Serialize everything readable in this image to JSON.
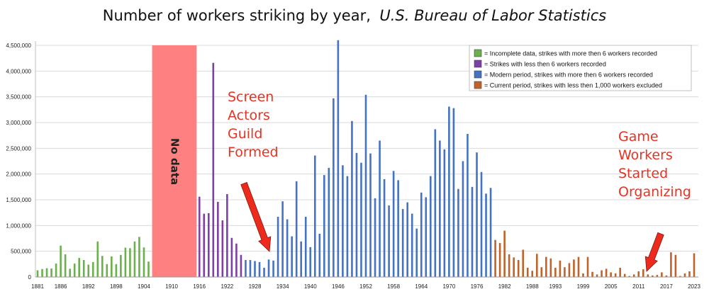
{
  "chart_data": {
    "type": "bar",
    "title": "Number of workers striking by year,",
    "subtitle": "U.S. Bureau of Labor Statistics",
    "xlabel": "",
    "ylabel": "",
    "ylim": [
      0,
      4500000
    ],
    "yticks": [
      0,
      500000,
      1000000,
      1500000,
      2000000,
      2500000,
      3000000,
      3500000,
      4000000,
      4500000
    ],
    "ytick_labels": [
      "0",
      "500,000",
      "1,000,000",
      "1,500,000",
      "2,000,000",
      "2,500,000",
      "3,000,000",
      "3,500,000",
      "4,000,000",
      "4,500,000"
    ],
    "xtick_labels": [
      "1881",
      "1886",
      "1892",
      "1898",
      "1904",
      "1910",
      "1916",
      "1922",
      "1928",
      "1934",
      "1940",
      "1946",
      "1952",
      "1958",
      "1964",
      "1970",
      "1976",
      "1982",
      "1988",
      "1993",
      "1999",
      "2005",
      "2011",
      "2017",
      "2023"
    ],
    "x_range": [
      1881,
      2023
    ],
    "grid": true,
    "legend_position": "top-right",
    "no_data_range": [
      1906,
      1915
    ],
    "no_data_label": "No data",
    "series": [
      {
        "name": "= Incomplete data, strikes with more then 6 workers recorded",
        "color": "#6ab04c",
        "x": [
          1881,
          1882,
          1883,
          1884,
          1885,
          1886,
          1887,
          1888,
          1889,
          1890,
          1891,
          1892,
          1893,
          1894,
          1895,
          1896,
          1897,
          1898,
          1899,
          1900,
          1901,
          1902,
          1903,
          1904,
          1905
        ],
        "values": [
          130000,
          155000,
          170000,
          165000,
          260000,
          610000,
          440000,
          160000,
          260000,
          370000,
          330000,
          240000,
          290000,
          690000,
          410000,
          250000,
          400000,
          250000,
          430000,
          570000,
          560000,
          690000,
          780000,
          575000,
          300000
        ]
      },
      {
        "name": "= Strikes with less then 6 workers recorded",
        "color": "#7e3fa6",
        "x": [
          1916,
          1917,
          1918,
          1919,
          1920,
          1921,
          1922,
          1923,
          1924,
          1925
        ],
        "values": [
          1560000,
          1230000,
          1240000,
          4160000,
          1460000,
          1100000,
          1610000,
          760000,
          650000,
          430000
        ]
      },
      {
        "name": "= Modern period, strikes with more then 6 workers recorded",
        "color": "#4472c4",
        "x": [
          1926,
          1927,
          1928,
          1929,
          1930,
          1931,
          1932,
          1933,
          1934,
          1935,
          1936,
          1937,
          1938,
          1939,
          1940,
          1941,
          1942,
          1943,
          1944,
          1945,
          1946,
          1947,
          1948,
          1949,
          1950,
          1951,
          1952,
          1953,
          1954,
          1955,
          1956,
          1957,
          1958,
          1959,
          1960,
          1961,
          1962,
          1963,
          1964,
          1965,
          1966,
          1967,
          1968,
          1969,
          1970,
          1971,
          1972,
          1973,
          1974,
          1975,
          1976,
          1977,
          1978,
          1979
        ],
        "values": [
          330000,
          330000,
          310000,
          290000,
          180000,
          340000,
          320000,
          1170000,
          1470000,
          1120000,
          790000,
          1860000,
          690000,
          1170000,
          580000,
          2360000,
          840000,
          1980000,
          2120000,
          3470000,
          4600000,
          2170000,
          1960000,
          3030000,
          2410000,
          2220000,
          3540000,
          2400000,
          1530000,
          2650000,
          1900000,
          1390000,
          2060000,
          1880000,
          1320000,
          1450000,
          1230000,
          940000,
          1640000,
          1550000,
          1960000,
          2870000,
          2650000,
          2480000,
          3310000,
          3280000,
          1710000,
          2250000,
          2780000,
          1750000,
          2420000,
          2040000,
          1620000,
          1730000
        ]
      },
      {
        "name": "= Current period, strikes with less then 1,000 workers excluded",
        "color": "#c0632b",
        "x": [
          1980,
          1981,
          1982,
          1983,
          1984,
          1985,
          1986,
          1987,
          1988,
          1989,
          1990,
          1991,
          1992,
          1993,
          1994,
          1995,
          1996,
          1997,
          1998,
          1999,
          2000,
          2001,
          2002,
          2003,
          2004,
          2005,
          2006,
          2007,
          2008,
          2009,
          2010,
          2011,
          2012,
          2013,
          2014,
          2015,
          2016,
          2017,
          2018,
          2019,
          2020,
          2021,
          2022,
          2023
        ],
        "values": [
          720000,
          660000,
          900000,
          440000,
          380000,
          330000,
          530000,
          180000,
          120000,
          450000,
          190000,
          390000,
          360000,
          180000,
          320000,
          190000,
          270000,
          340000,
          390000,
          70000,
          390000,
          100000,
          50000,
          130000,
          160000,
          90000,
          70000,
          180000,
          60000,
          20000,
          50000,
          110000,
          150000,
          50000,
          30000,
          40000,
          90000,
          30000,
          480000,
          430000,
          20000,
          70000,
          110000,
          460000
        ]
      }
    ],
    "annotations": [
      {
        "lines": [
          "Screen",
          "Actors",
          "Guild",
          "Formed"
        ],
        "year": 1933
      },
      {
        "lines": [
          "Game",
          "Workers",
          "Started",
          "Organizing"
        ],
        "year": 2018
      }
    ]
  },
  "colors": {
    "grid": "#d9d9d9",
    "no_data_fill": "#ff8080",
    "annotation": "#e63323",
    "arrow": "#ee2a1d"
  }
}
